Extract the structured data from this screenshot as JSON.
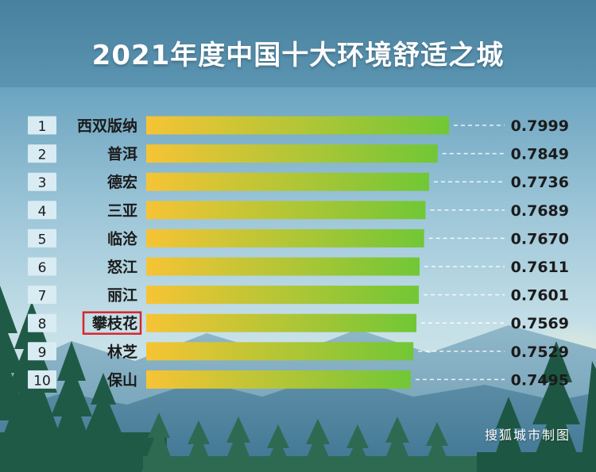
{
  "title": "2021年度中国十大环境舒适之城",
  "source_note": "搜狐城市制图",
  "colors": {
    "bar_start": "#f6c435",
    "bar_end": "#71c736",
    "rank_bg": "#d9ebf3",
    "highlight_box": "#d9252c",
    "text_dark": "#1b1b1b",
    "dash": "#ffffff"
  },
  "chart_data": {
    "type": "bar",
    "orientation": "horizontal",
    "ranks": [
      "1",
      "2",
      "3",
      "4",
      "5",
      "6",
      "7",
      "8",
      "9",
      "10"
    ],
    "categories": [
      "西双版纳",
      "普洱",
      "德宏",
      "三亚",
      "临沧",
      "怒江",
      "丽江",
      "攀枝花",
      "林芝",
      "保山"
    ],
    "values": [
      0.7999,
      0.7849,
      0.7736,
      0.7689,
      0.767,
      0.7611,
      0.7601,
      0.7569,
      0.7529,
      0.7495
    ],
    "value_labels": [
      "0.7999",
      "0.7849",
      "0.7736",
      "0.7689",
      "0.7670",
      "0.7611",
      "0.7601",
      "0.7569",
      "0.7529",
      "0.7495"
    ],
    "highlighted_category": "攀枝花",
    "title": "2021年度中国十大环境舒适之城",
    "xlabel": "",
    "ylabel": ""
  }
}
